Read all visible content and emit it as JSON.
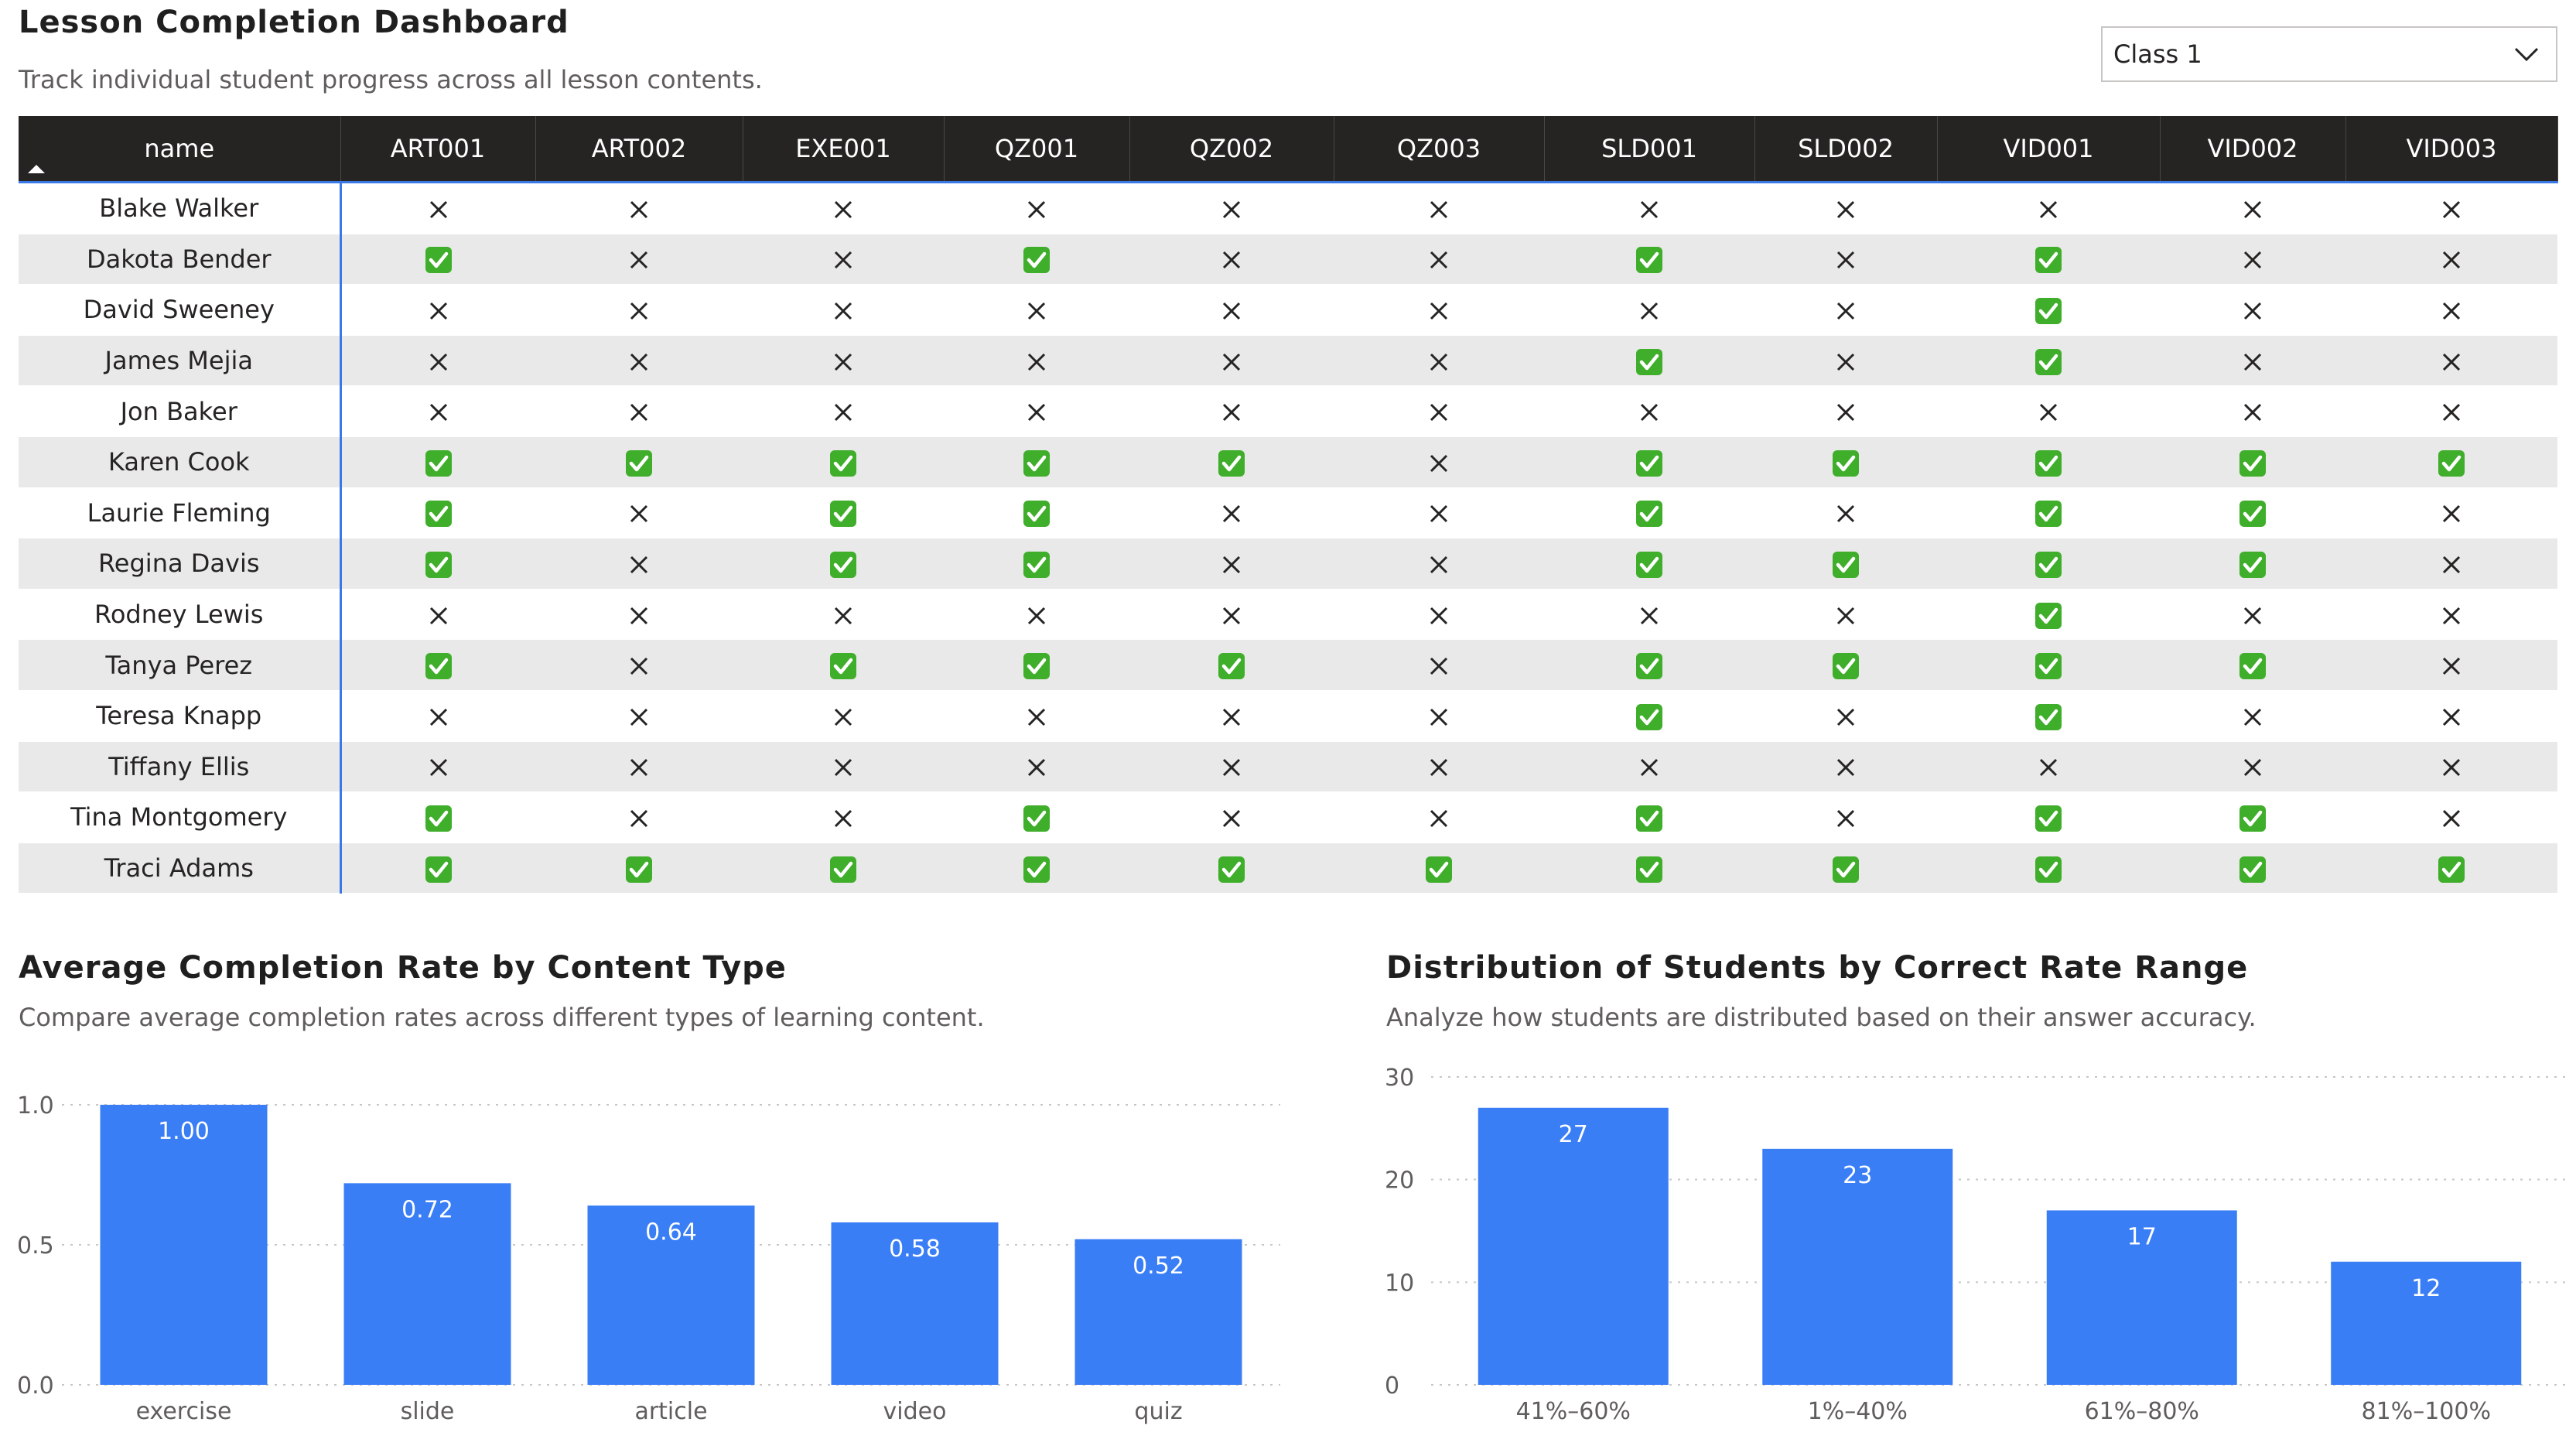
{
  "header": {
    "title": "Lesson Completion Dashboard",
    "subtitle": "Track individual student progress across all lesson contents."
  },
  "slicer": {
    "selected": "Class 1",
    "icon": "chevron-down-icon"
  },
  "table": {
    "columns": [
      "name",
      "ART001",
      "ART002",
      "EXE001",
      "QZ001",
      "QZ002",
      "QZ003",
      "SLD001",
      "SLD002",
      "VID001",
      "VID002",
      "VID003"
    ],
    "sort": "ascending by name",
    "rows": [
      {
        "name": "Blake Walker",
        "marks": [
          0,
          0,
          0,
          0,
          0,
          0,
          0,
          0,
          0,
          0,
          0
        ]
      },
      {
        "name": "Dakota Bender",
        "marks": [
          1,
          0,
          0,
          1,
          0,
          0,
          1,
          0,
          1,
          0,
          0
        ]
      },
      {
        "name": "David Sweeney",
        "marks": [
          0,
          0,
          0,
          0,
          0,
          0,
          0,
          0,
          1,
          0,
          0
        ]
      },
      {
        "name": "James Mejia",
        "marks": [
          0,
          0,
          0,
          0,
          0,
          0,
          1,
          0,
          1,
          0,
          0
        ]
      },
      {
        "name": "Jon Baker",
        "marks": [
          0,
          0,
          0,
          0,
          0,
          0,
          0,
          0,
          0,
          0,
          0
        ]
      },
      {
        "name": "Karen Cook",
        "marks": [
          1,
          1,
          1,
          1,
          1,
          0,
          1,
          1,
          1,
          1,
          1
        ]
      },
      {
        "name": "Laurie Fleming",
        "marks": [
          1,
          0,
          1,
          1,
          0,
          0,
          1,
          0,
          1,
          1,
          0
        ]
      },
      {
        "name": "Regina Davis",
        "marks": [
          1,
          0,
          1,
          1,
          0,
          0,
          1,
          1,
          1,
          1,
          0
        ]
      },
      {
        "name": "Rodney Lewis",
        "marks": [
          0,
          0,
          0,
          0,
          0,
          0,
          0,
          0,
          1,
          0,
          0
        ]
      },
      {
        "name": "Tanya Perez",
        "marks": [
          1,
          0,
          1,
          1,
          1,
          0,
          1,
          1,
          1,
          1,
          0
        ]
      },
      {
        "name": "Teresa Knapp",
        "marks": [
          0,
          0,
          0,
          0,
          0,
          0,
          1,
          0,
          1,
          0,
          0
        ]
      },
      {
        "name": "Tiffany Ellis",
        "marks": [
          0,
          0,
          0,
          0,
          0,
          0,
          0,
          0,
          0,
          0,
          0
        ]
      },
      {
        "name": "Tina Montgomery",
        "marks": [
          1,
          0,
          0,
          1,
          0,
          0,
          1,
          0,
          1,
          1,
          0
        ]
      },
      {
        "name": "Traci Adams",
        "marks": [
          1,
          1,
          1,
          1,
          1,
          1,
          1,
          1,
          1,
          1,
          1
        ]
      }
    ],
    "mark_legend": {
      "1": "green-check-icon",
      "0": "cross-icon"
    }
  },
  "colors": {
    "bar": "#3a7ef6",
    "check_green": "#3fae2a",
    "header_bg": "#252423",
    "accent": "#3a78e6"
  },
  "chart_left": {
    "title": "Average Completion Rate by Content Type",
    "subtitle": "Compare average completion rates across different types of learning content."
  },
  "chart_right": {
    "title": "Distribution of Students by Correct Rate Range",
    "subtitle": "Analyze how students are distributed based on their answer accuracy."
  },
  "chart_data": [
    {
      "type": "bar",
      "categories": [
        "exercise",
        "slide",
        "article",
        "video",
        "quiz"
      ],
      "values": [
        1.0,
        0.72,
        0.64,
        0.58,
        0.52
      ],
      "data_labels": [
        "1.00",
        "0.72",
        "0.64",
        "0.58",
        "0.52"
      ],
      "yticks": [
        "0.0",
        "0.5",
        "1.0"
      ],
      "ylim": [
        0,
        1.0
      ],
      "grid": true
    },
    {
      "type": "bar",
      "categories": [
        "41%–60%",
        "1%–40%",
        "61%–80%",
        "81%–100%"
      ],
      "values": [
        27,
        23,
        17,
        12
      ],
      "data_labels": [
        "27",
        "23",
        "17",
        "12"
      ],
      "yticks": [
        "0",
        "10",
        "20",
        "30"
      ],
      "ylim": [
        0,
        30
      ],
      "grid": true
    }
  ]
}
